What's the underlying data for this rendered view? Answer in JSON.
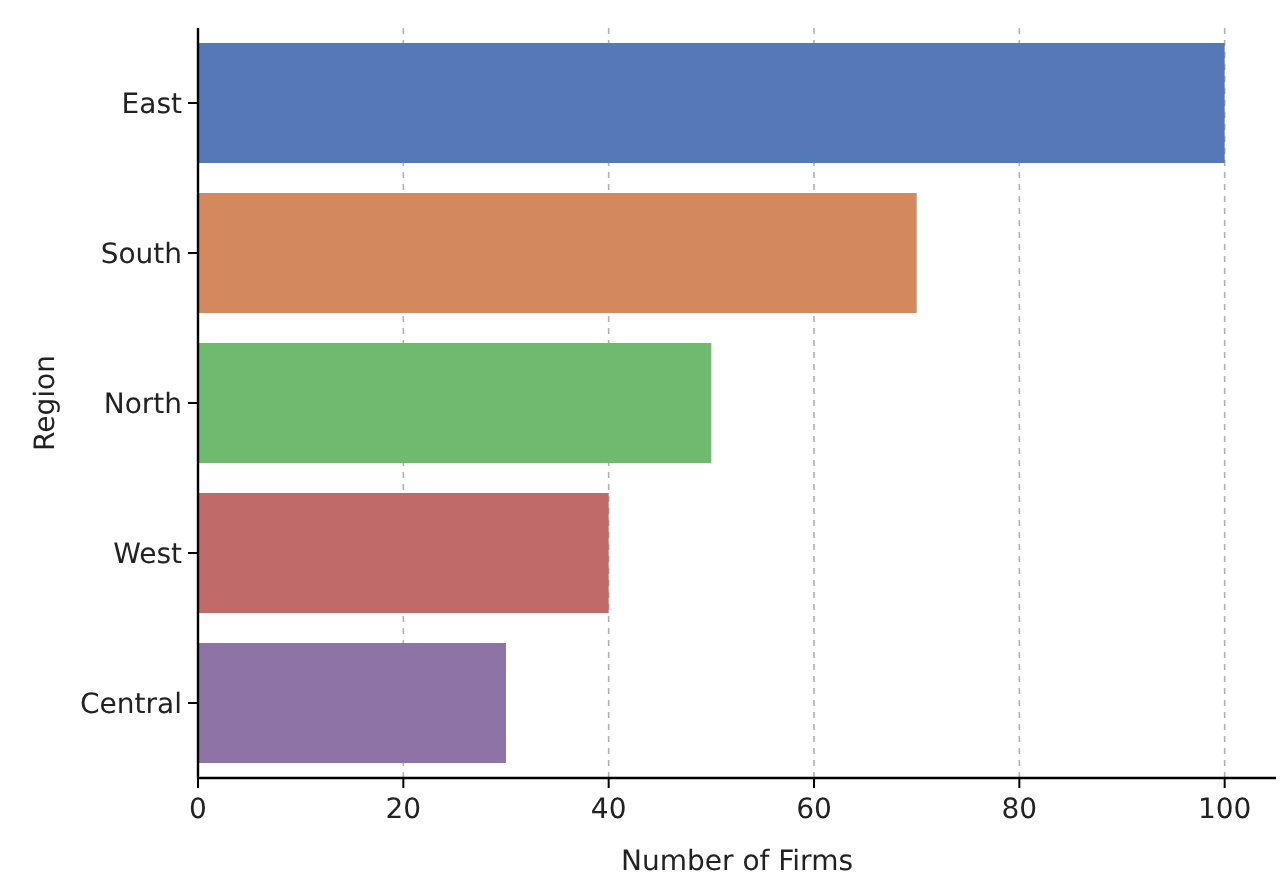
{
  "chart_data": {
    "type": "bar",
    "orientation": "horizontal",
    "xlabel": "Number of Firms",
    "ylabel": "Region",
    "categories": [
      "East",
      "South",
      "North",
      "West",
      "Central"
    ],
    "values": [
      100,
      70,
      50,
      40,
      30
    ],
    "colors": [
      "#5579b8",
      "#d4885e",
      "#6fba6f",
      "#c06a6a",
      "#8e73a6"
    ],
    "xlim": [
      0,
      105
    ],
    "xticks": [
      0,
      20,
      40,
      60,
      80,
      100
    ],
    "grid": "x"
  }
}
